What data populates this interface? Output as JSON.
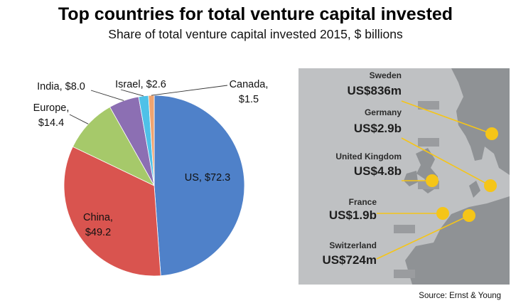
{
  "title": "Top countries for total venture capital invested",
  "subtitle": "Share of total venture capital invested 2015, $ billions",
  "source": "Source: Ernst & Young",
  "chart_data": [
    {
      "type": "pie",
      "slices": [
        {
          "label": "US, $72.3",
          "name": "US",
          "value": 72.3,
          "color": "#4f81c9"
        },
        {
          "label": "China, $49.2",
          "name": "China",
          "value": 49.2,
          "color": "#d9544f"
        },
        {
          "label": "Europe, $14.4",
          "name": "Europe",
          "value": 14.4,
          "color": "#a6c96a"
        },
        {
          "label": "India, $8.0",
          "name": "India",
          "value": 8.0,
          "color": "#8c6fb3"
        },
        {
          "label": "Israel, $2.6",
          "name": "Israel",
          "value": 2.6,
          "color": "#4fc1e8"
        },
        {
          "label": "Canada, $1.5",
          "name": "Canada",
          "value": 1.5,
          "color": "#f0a470"
        }
      ]
    },
    {
      "type": "map",
      "accent": "#f5c518",
      "callouts": [
        {
          "country": "Sweden",
          "value": "US$836m"
        },
        {
          "country": "Germany",
          "value": "US$2.9b"
        },
        {
          "country": "United Kingdom",
          "value": "US$4.8b"
        },
        {
          "country": "France",
          "value": "US$1.9b"
        },
        {
          "country": "Switzerland",
          "value": "US$724m"
        }
      ]
    }
  ]
}
